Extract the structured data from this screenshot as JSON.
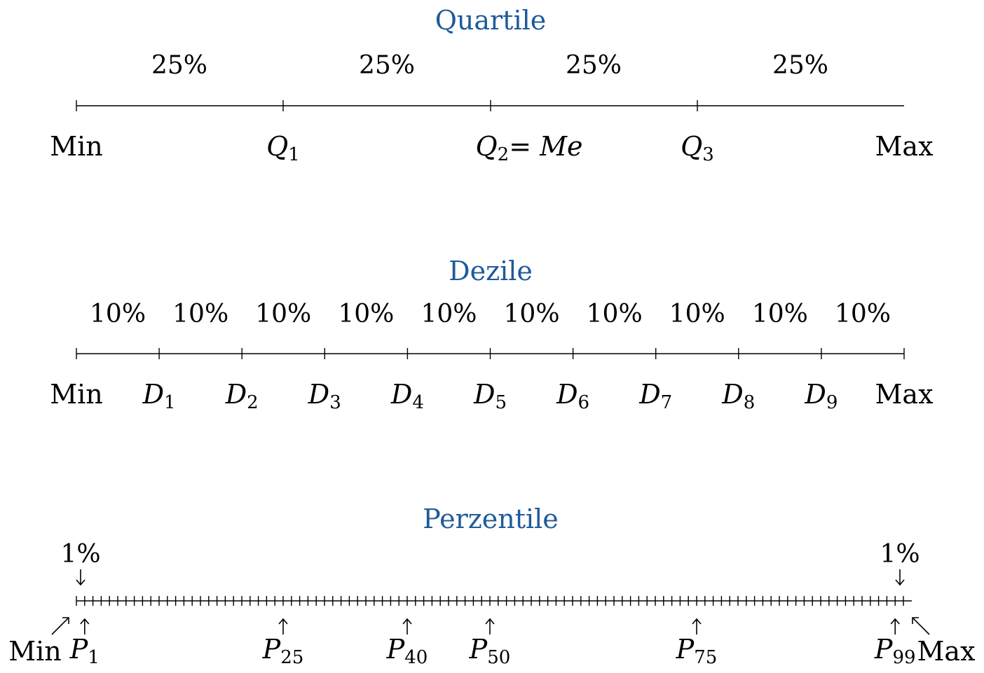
{
  "quartile": {
    "title": "Quartile",
    "percents": [
      "25%",
      "25%",
      "25%",
      "25%"
    ],
    "labels": {
      "min": "Min",
      "q1": "Q",
      "q1_sub": "1",
      "q2": "Q",
      "q2_sub": "2",
      "q2_eq": "= ",
      "q2_me": "Me",
      "q3": "Q",
      "q3_sub": "3",
      "max": "Max"
    }
  },
  "dezile": {
    "title": "Dezile",
    "percents": [
      "10%",
      "10%",
      "10%",
      "10%",
      "10%",
      "10%",
      "10%",
      "10%",
      "10%",
      "10%"
    ],
    "labels": {
      "min": "Min",
      "d": "D",
      "subs": [
        "1",
        "2",
        "3",
        "4",
        "5",
        "6",
        "7",
        "8",
        "9"
      ],
      "max": "Max"
    }
  },
  "perzentile": {
    "title": "Perzentile",
    "left_percent": "1%",
    "right_percent": "1%",
    "labels": {
      "min": "Min",
      "max": "Max",
      "p": "P",
      "marks": [
        {
          "sub": "1",
          "value": 1
        },
        {
          "sub": "25",
          "value": 25
        },
        {
          "sub": "40",
          "value": 40
        },
        {
          "sub": "50",
          "value": 50
        },
        {
          "sub": "75",
          "value": 75
        },
        {
          "sub": "99",
          "value": 99
        }
      ]
    },
    "tick_count": 100
  }
}
